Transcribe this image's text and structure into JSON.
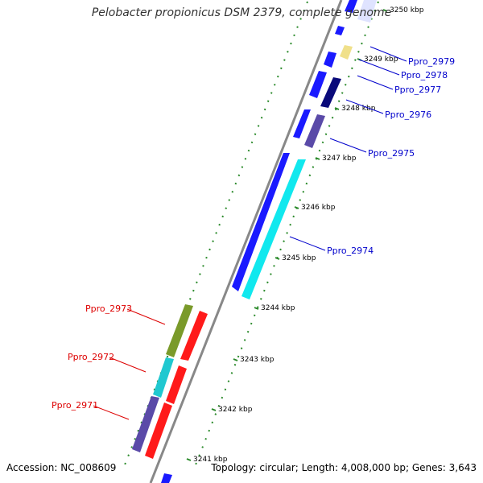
{
  "title": "Pelobacter propionicus DSM 2379, complete genome",
  "footer": {
    "accession": "Accession: NC_008609",
    "summary": "Topology: circular; Length: 4,008,000 bp; Genes: 3,643"
  },
  "colors": {
    "forward_label": "#0000cc",
    "reverse_label": "#dd0000",
    "axis": "#888888",
    "tick": "#2a8a2a"
  },
  "ticks": [
    {
      "label": "3241 kbp"
    },
    {
      "label": "3242 kbp"
    },
    {
      "label": "3243 kbp"
    },
    {
      "label": "3244 kbp"
    },
    {
      "label": "3245 kbp"
    },
    {
      "label": "3246 kbp"
    },
    {
      "label": "3247 kbp"
    },
    {
      "label": "3248 kbp"
    },
    {
      "label": "3249 kbp"
    },
    {
      "label": "3250 kbp"
    }
  ],
  "gene_labels": {
    "forward": [
      "Ppro_2979",
      "Ppro_2978",
      "Ppro_2977",
      "Ppro_2976",
      "Ppro_2975",
      "Ppro_2974"
    ],
    "reverse": [
      "Ppro_2973",
      "Ppro_2972",
      "Ppro_2971"
    ]
  }
}
